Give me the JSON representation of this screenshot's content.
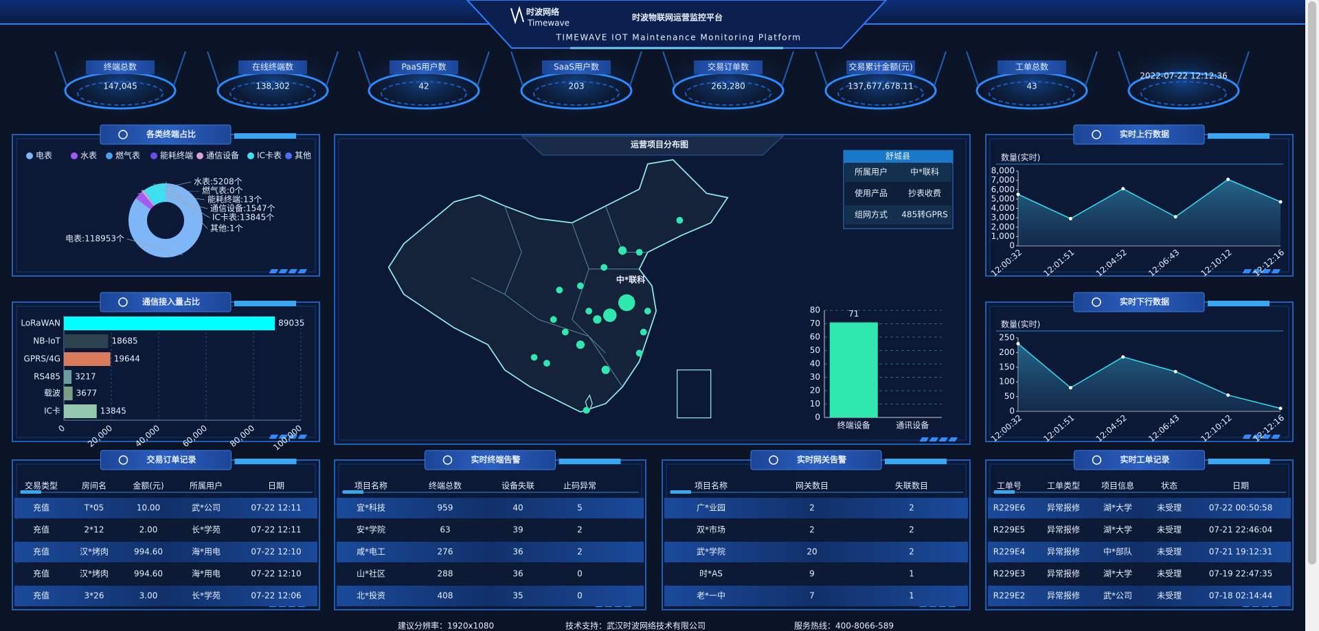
{
  "header": {
    "logo": "时波网络",
    "logo_sub": "Timewave",
    "title": "时波物联网运营监控平台",
    "subtitle": "TIMEWAVE IOT Maintenance Monitoring Platform"
  },
  "stats": [
    {
      "label": "终端总数",
      "value": "147,045"
    },
    {
      "label": "在线终端数",
      "value": "138,302"
    },
    {
      "label": "PaaS用户数",
      "value": "42"
    },
    {
      "label": "SaaS用户数",
      "value": "203"
    },
    {
      "label": "交易订单数",
      "value": "263,280"
    },
    {
      "label": "交易累计金额(元)",
      "value": "137,677,678.11"
    },
    {
      "label": "工单总数",
      "value": "43"
    }
  ],
  "clock": "2022-07-22 12:12:36",
  "map": {
    "title": "运营项目分布图",
    "label": "中*联科",
    "info": {
      "title": "舒城县",
      "rows": [
        [
          "所属用户",
          "中*联科"
        ],
        [
          "使用产品",
          "抄表收费"
        ],
        [
          "组网方式",
          "485转GPRS"
        ]
      ]
    }
  },
  "chart_data": [
    {
      "type": "pie",
      "title": "各类终端占比",
      "categories": [
        "电表",
        "水表",
        "燃气表",
        "能耗终端",
        "通信设备",
        "IC卡表",
        "其他"
      ],
      "values": [
        118953,
        5208,
        0,
        13,
        1547,
        13845,
        1
      ],
      "value_labels": [
        "电表:118953个",
        "水表:5208个",
        "燃气表:0个",
        "能耗终端:13个",
        "通信设备:1547个",
        "IC卡表:13845个",
        "其他:1个"
      ],
      "colors": [
        "#7eb6f7",
        "#a35cf0",
        "#4aa0f0",
        "#6a4ff0",
        "#d8a0d8",
        "#3de0f0",
        "#4a70f0"
      ]
    },
    {
      "type": "bar",
      "orientation": "horizontal",
      "title": "通信接入量占比",
      "categories": [
        "LoRaWAN",
        "NB-IoT",
        "GPRS/4G",
        "RS485",
        "载波",
        "IC卡"
      ],
      "values": [
        89035,
        18685,
        19644,
        3217,
        3677,
        13845
      ],
      "colors": [
        "#00ffff",
        "#2e4350",
        "#d97b5c",
        "#6a9ea0",
        "#7a9e82",
        "#94c9b0"
      ],
      "xlim": [
        0,
        100000
      ],
      "xticks": [
        0,
        {
          "value": 20000,
          "label": "20,000"
        },
        {
          "value": 40000,
          "label": "40,000"
        },
        {
          "value": 60000,
          "label": "60,000"
        },
        {
          "value": 80000,
          "label": "80,000"
        },
        {
          "value": 100000,
          "label": "100,000"
        }
      ],
      "grid": true
    },
    {
      "type": "bar",
      "orientation": "vertical",
      "categories": [
        "终端设备",
        "通讯设备"
      ],
      "values": [
        71,
        0
      ],
      "color": "#2ee8b0",
      "ylim": [
        0,
        80
      ],
      "yticks": [
        0,
        10,
        20,
        30,
        40,
        50,
        60,
        70,
        80
      ],
      "grid": true
    },
    {
      "type": "line",
      "title": "实时上行数据",
      "y_label": "数量(实时)",
      "categories": [
        "12:00:32",
        "12:01:51",
        "12:04:52",
        "12:06:43",
        "12:10:12",
        "12:12:16"
      ],
      "values": [
        5500,
        2900,
        6100,
        3100,
        7100,
        4700
      ],
      "color": "#2fe0f0",
      "ylim": [
        0,
        8000
      ],
      "yticks": [
        0,
        {
          "value": 1000,
          "label": "1,000"
        },
        {
          "value": 2000,
          "label": "2,000"
        },
        {
          "value": 3000,
          "label": "3,000"
        },
        {
          "value": 4000,
          "label": "4,000"
        },
        {
          "value": 5000,
          "label": "5,000"
        },
        {
          "value": 6000,
          "label": "6,000"
        },
        {
          "value": 7000,
          "label": "7,000"
        },
        {
          "value": 8000,
          "label": "8,000"
        }
      ]
    },
    {
      "type": "line",
      "title": "实时下行数据",
      "y_label": "数量(实时)",
      "categories": [
        "12:00:32",
        "12:01:51",
        "12:04:52",
        "12:06:43",
        "12:10:12",
        "12:12:16"
      ],
      "values": [
        230,
        80,
        185,
        135,
        55,
        10
      ],
      "color": "#2fe0f0",
      "ylim": [
        0,
        250
      ],
      "yticks": [
        0,
        50,
        100,
        150,
        200,
        250
      ]
    }
  ],
  "tables": [
    {
      "title": "交易订单记录",
      "columns": [
        "交易类型",
        "房间名",
        "金额(元)",
        "所属用户",
        "日期"
      ],
      "rows": [
        [
          "充值",
          "T*05",
          "10.00",
          "武*公司",
          "07-22 12:11"
        ],
        [
          "充值",
          "2*12",
          "2.00",
          "长*学苑",
          "07-22 12:11"
        ],
        [
          "充值",
          "汉*烤肉",
          "994.60",
          "海*用电",
          "07-22 12:10"
        ],
        [
          "充值",
          "汉*烤肉",
          "994.60",
          "海*用电",
          "07-22 12:10"
        ],
        [
          "充值",
          "3*26",
          "3.00",
          "长*学苑",
          "07-22 12:06"
        ]
      ]
    },
    {
      "title": "实时终端告警",
      "columns": [
        "项目名称",
        "终端总数",
        "设备失联",
        "止码异常"
      ],
      "rows": [
        [
          "宜*科技",
          "959",
          "40",
          "5"
        ],
        [
          "安*学院",
          "63",
          "39",
          "2"
        ],
        [
          "咸*电工",
          "276",
          "36",
          "2"
        ],
        [
          "山*社区",
          "288",
          "36",
          "0"
        ],
        [
          "北*投资",
          "408",
          "35",
          "0"
        ]
      ]
    },
    {
      "title": "实时网关告警",
      "columns": [
        "项目名称",
        "网关数目",
        "失联数目"
      ],
      "rows": [
        [
          "广*业园",
          "2",
          "2"
        ],
        [
          "双*市场",
          "2",
          "2"
        ],
        [
          "武*学院",
          "20",
          "2"
        ],
        [
          "时*AS",
          "9",
          "1"
        ],
        [
          "老*一中",
          "7",
          "1"
        ]
      ]
    },
    {
      "title": "实时工单记录",
      "columns": [
        "工单号",
        "工单类型",
        "项目信息",
        "状态",
        "日期"
      ],
      "rows": [
        [
          "R229E6",
          "异常报修",
          "湖*大学",
          "未受理",
          "07-22 00:50:58"
        ],
        [
          "R229E5",
          "异常报修",
          "湖*大学",
          "未受理",
          "07-21 22:46:04"
        ],
        [
          "R229E4",
          "异常报修",
          "中*部队",
          "未受理",
          "07-21 19:12:31"
        ],
        [
          "R229E3",
          "异常报修",
          "湖*大学",
          "未受理",
          "07-19 22:47:35"
        ],
        [
          "R229E2",
          "异常报修",
          "武*公司",
          "未受理",
          "07-18 02:14:44"
        ]
      ]
    }
  ],
  "footer": [
    "建议分辨率：1920x1080",
    "技术支持：武汉时波网络技术有限公司",
    "服务热线：400-8066-589"
  ]
}
